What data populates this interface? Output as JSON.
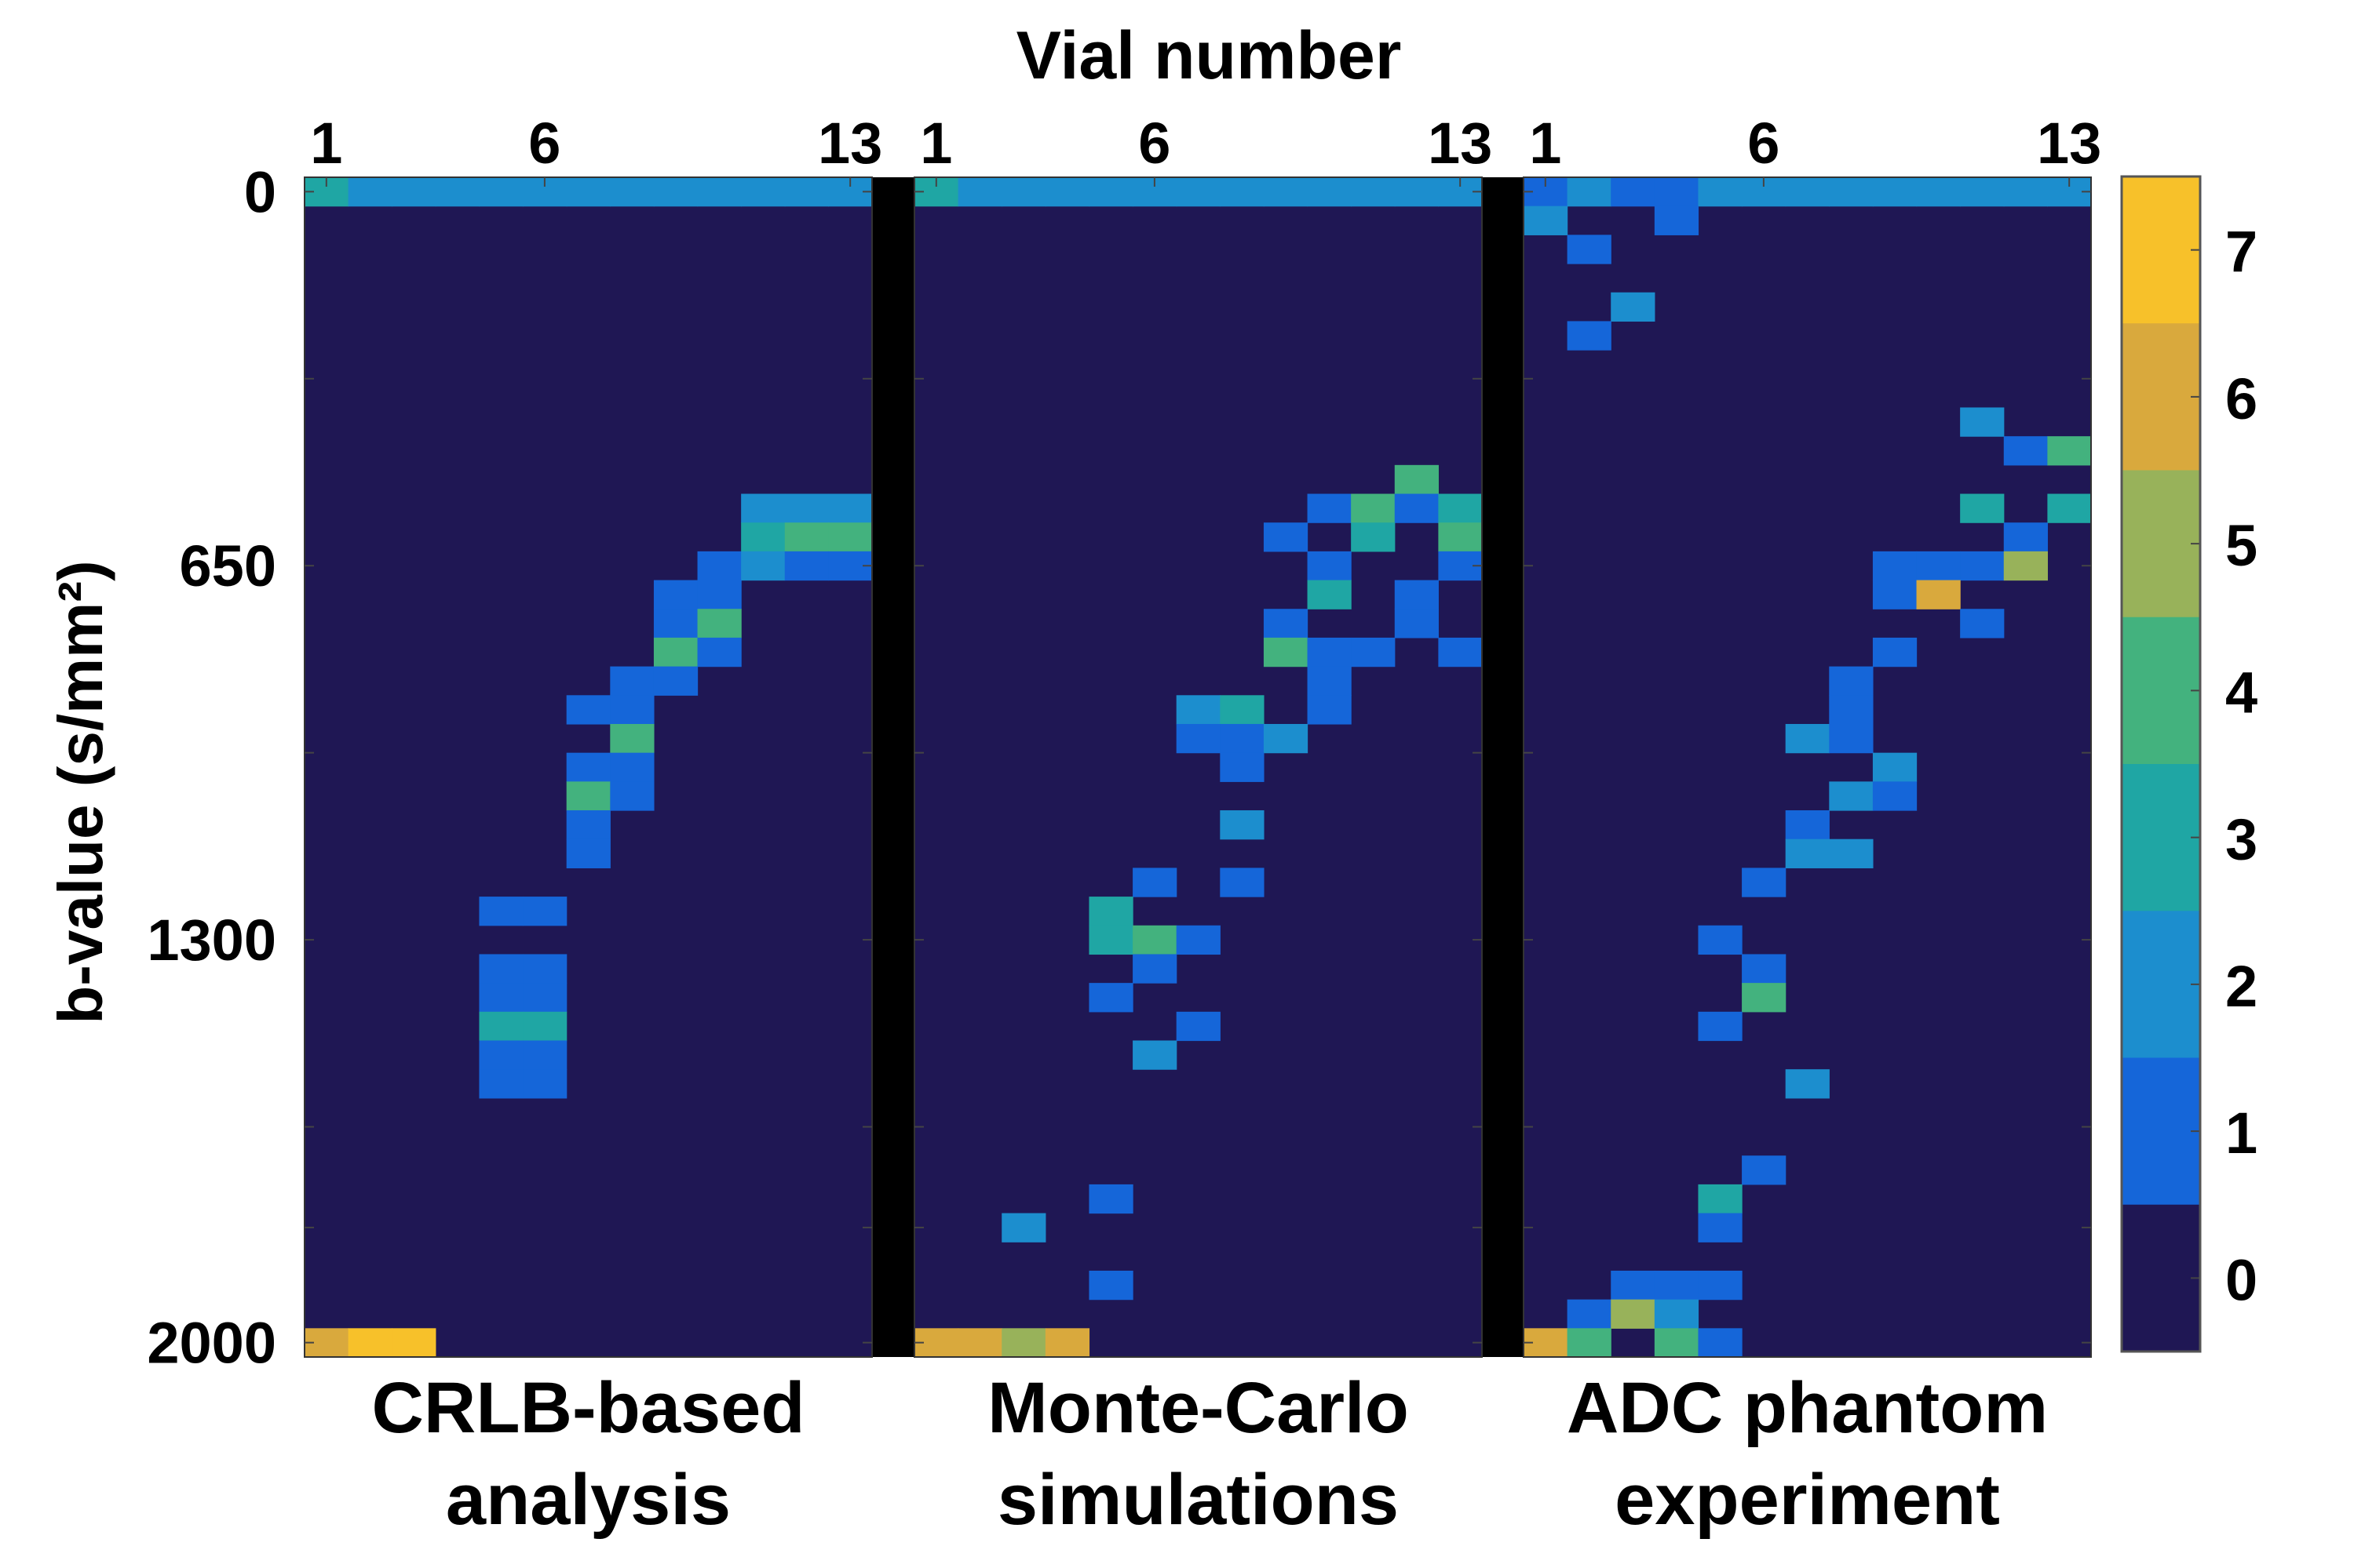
{
  "chart_data": {
    "type": "heatmap",
    "top_title": "Vial number",
    "ylabel": "b-value (s/mm²)",
    "x_tick_labels": [
      "1",
      "6",
      "13"
    ],
    "x_tick_vials": [
      1,
      6,
      13
    ],
    "y_tick_labels": [
      "0",
      "650",
      "1300",
      "2000"
    ],
    "y_tick_values": [
      0,
      650,
      1300,
      2000
    ],
    "ylim": [
      0,
      2000
    ],
    "n_vials": 13,
    "n_bvalues": 40,
    "row_spacing": 50,
    "colorbar": {
      "ticks": [
        "7",
        "6",
        "5",
        "4",
        "3",
        "2",
        "1",
        "0"
      ],
      "range": [
        0,
        7
      ],
      "colors": [
        "#1f1754",
        "#1566d9",
        "#1c8ece",
        "#1fa6a4",
        "#43b27e",
        "#98b25a",
        "#d9a93d",
        "#f7c12a"
      ]
    },
    "panels": [
      {
        "caption": [
          "CRLB-based",
          "analysis"
        ],
        "cells": [
          [
            0,
            0,
            3
          ],
          [
            0,
            1,
            2
          ],
          [
            0,
            2,
            2
          ],
          [
            0,
            3,
            2
          ],
          [
            0,
            4,
            2
          ],
          [
            0,
            5,
            2
          ],
          [
            0,
            6,
            2
          ],
          [
            0,
            7,
            2
          ],
          [
            0,
            8,
            2
          ],
          [
            0,
            9,
            2
          ],
          [
            0,
            10,
            2
          ],
          [
            0,
            11,
            2
          ],
          [
            0,
            12,
            2
          ],
          [
            11,
            10,
            2
          ],
          [
            11,
            11,
            2
          ],
          [
            11,
            12,
            2
          ],
          [
            12,
            10,
            3
          ],
          [
            12,
            11,
            4
          ],
          [
            12,
            12,
            4
          ],
          [
            13,
            9,
            1
          ],
          [
            13,
            10,
            2
          ],
          [
            13,
            11,
            1
          ],
          [
            13,
            12,
            1
          ],
          [
            14,
            8,
            1
          ],
          [
            14,
            9,
            1
          ],
          [
            15,
            8,
            1
          ],
          [
            15,
            9,
            4
          ],
          [
            16,
            8,
            4
          ],
          [
            16,
            9,
            1
          ],
          [
            17,
            7,
            1
          ],
          [
            17,
            8,
            1
          ],
          [
            18,
            6,
            1
          ],
          [
            18,
            7,
            1
          ],
          [
            19,
            7,
            4
          ],
          [
            20,
            6,
            1
          ],
          [
            20,
            7,
            1
          ],
          [
            21,
            6,
            4
          ],
          [
            21,
            7,
            1
          ],
          [
            22,
            6,
            1
          ],
          [
            23,
            6,
            1
          ],
          [
            25,
            4,
            1
          ],
          [
            25,
            5,
            1
          ],
          [
            27,
            4,
            1
          ],
          [
            27,
            5,
            1
          ],
          [
            28,
            4,
            1
          ],
          [
            28,
            5,
            1
          ],
          [
            29,
            4,
            3
          ],
          [
            29,
            5,
            3
          ],
          [
            30,
            4,
            1
          ],
          [
            30,
            5,
            1
          ],
          [
            31,
            4,
            1
          ],
          [
            31,
            5,
            1
          ],
          [
            40,
            0,
            6
          ],
          [
            40,
            1,
            7
          ],
          [
            40,
            2,
            7
          ]
        ]
      },
      {
        "caption": [
          "Monte-Carlo",
          "simulations"
        ],
        "cells": [
          [
            0,
            0,
            3
          ],
          [
            0,
            1,
            2
          ],
          [
            0,
            2,
            2
          ],
          [
            0,
            3,
            2
          ],
          [
            0,
            4,
            2
          ],
          [
            0,
            5,
            2
          ],
          [
            0,
            6,
            2
          ],
          [
            0,
            7,
            2
          ],
          [
            0,
            8,
            2
          ],
          [
            0,
            9,
            2
          ],
          [
            0,
            10,
            2
          ],
          [
            0,
            11,
            2
          ],
          [
            0,
            12,
            2
          ],
          [
            10,
            11,
            4
          ],
          [
            11,
            9,
            1
          ],
          [
            11,
            10,
            4
          ],
          [
            11,
            11,
            1
          ],
          [
            11,
            12,
            3
          ],
          [
            12,
            8,
            1
          ],
          [
            12,
            10,
            3
          ],
          [
            12,
            12,
            4
          ],
          [
            13,
            9,
            1
          ],
          [
            13,
            12,
            1
          ],
          [
            14,
            9,
            3
          ],
          [
            14,
            11,
            1
          ],
          [
            15,
            8,
            1
          ],
          [
            15,
            11,
            1
          ],
          [
            16,
            8,
            4
          ],
          [
            16,
            9,
            1
          ],
          [
            16,
            10,
            1
          ],
          [
            16,
            12,
            1
          ],
          [
            17,
            9,
            1
          ],
          [
            18,
            6,
            2
          ],
          [
            18,
            7,
            3
          ],
          [
            18,
            9,
            1
          ],
          [
            19,
            6,
            1
          ],
          [
            19,
            7,
            1
          ],
          [
            19,
            8,
            2
          ],
          [
            20,
            7,
            1
          ],
          [
            22,
            7,
            2
          ],
          [
            24,
            5,
            1
          ],
          [
            24,
            7,
            1
          ],
          [
            25,
            4,
            3
          ],
          [
            26,
            4,
            3
          ],
          [
            26,
            5,
            4
          ],
          [
            26,
            6,
            1
          ],
          [
            27,
            5,
            1
          ],
          [
            28,
            4,
            1
          ],
          [
            29,
            6,
            1
          ],
          [
            30,
            5,
            2
          ],
          [
            35,
            4,
            1
          ],
          [
            36,
            2,
            2
          ],
          [
            38,
            4,
            1
          ],
          [
            40,
            0,
            6
          ],
          [
            40,
            1,
            6
          ],
          [
            40,
            2,
            5
          ],
          [
            40,
            3,
            6
          ]
        ]
      },
      {
        "caption": [
          "ADC phantom",
          "experiment"
        ],
        "cells": [
          [
            0,
            0,
            1
          ],
          [
            0,
            1,
            2
          ],
          [
            0,
            2,
            1
          ],
          [
            0,
            3,
            1
          ],
          [
            0,
            4,
            2
          ],
          [
            0,
            5,
            2
          ],
          [
            0,
            6,
            2
          ],
          [
            0,
            7,
            2
          ],
          [
            0,
            8,
            2
          ],
          [
            0,
            9,
            2
          ],
          [
            0,
            10,
            2
          ],
          [
            0,
            11,
            2
          ],
          [
            0,
            12,
            2
          ],
          [
            1,
            0,
            2
          ],
          [
            1,
            3,
            1
          ],
          [
            2,
            1,
            1
          ],
          [
            4,
            2,
            2
          ],
          [
            5,
            1,
            1
          ],
          [
            8,
            10,
            2
          ],
          [
            9,
            11,
            1
          ],
          [
            9,
            12,
            4
          ],
          [
            11,
            10,
            3
          ],
          [
            11,
            12,
            3
          ],
          [
            12,
            11,
            1
          ],
          [
            13,
            8,
            1
          ],
          [
            13,
            9,
            1
          ],
          [
            13,
            10,
            1
          ],
          [
            13,
            11,
            5
          ],
          [
            14,
            8,
            1
          ],
          [
            14,
            9,
            6
          ],
          [
            15,
            10,
            1
          ],
          [
            16,
            8,
            1
          ],
          [
            17,
            7,
            1
          ],
          [
            18,
            7,
            1
          ],
          [
            19,
            6,
            2
          ],
          [
            19,
            7,
            1
          ],
          [
            20,
            8,
            2
          ],
          [
            21,
            7,
            2
          ],
          [
            21,
            8,
            1
          ],
          [
            22,
            6,
            1
          ],
          [
            23,
            6,
            2
          ],
          [
            23,
            7,
            2
          ],
          [
            24,
            5,
            1
          ],
          [
            26,
            4,
            1
          ],
          [
            27,
            5,
            1
          ],
          [
            28,
            5,
            4
          ],
          [
            29,
            4,
            1
          ],
          [
            31,
            6,
            2
          ],
          [
            34,
            5,
            1
          ],
          [
            35,
            4,
            3
          ],
          [
            36,
            4,
            1
          ],
          [
            38,
            2,
            1
          ],
          [
            38,
            3,
            1
          ],
          [
            38,
            4,
            1
          ],
          [
            39,
            1,
            1
          ],
          [
            39,
            2,
            5
          ],
          [
            39,
            3,
            2
          ],
          [
            40,
            0,
            6
          ],
          [
            40,
            1,
            4
          ],
          [
            40,
            3,
            4
          ],
          [
            40,
            4,
            1
          ]
        ]
      }
    ]
  }
}
